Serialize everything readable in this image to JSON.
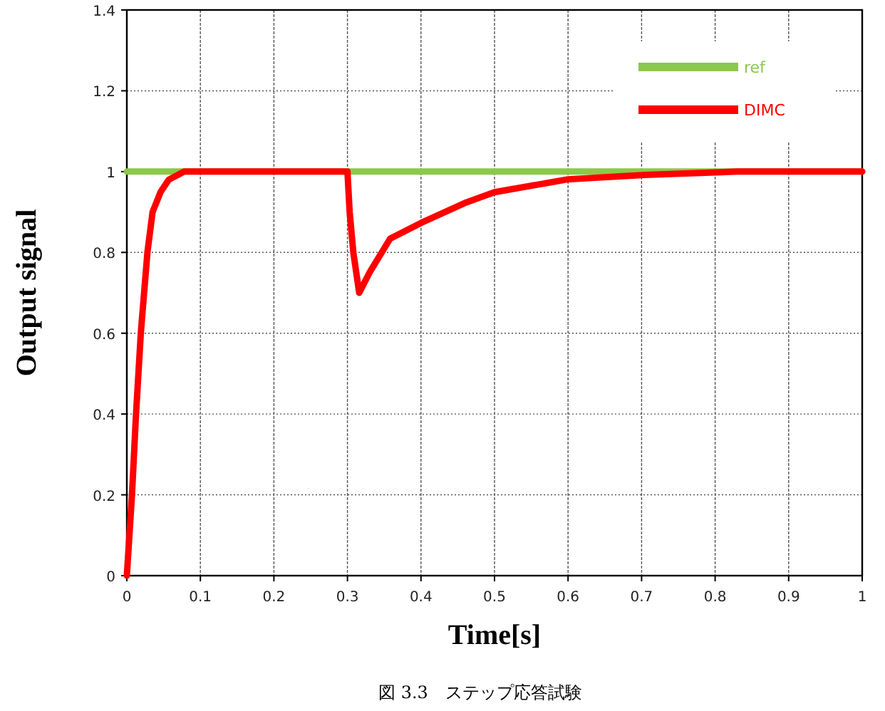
{
  "chart_data": {
    "type": "line",
    "xlabel": "Time[s]",
    "ylabel": "Output signal",
    "annotations": [
      "図 3.3　ステップ応答試験"
    ],
    "xlim": [
      0,
      1
    ],
    "ylim": [
      0,
      1.4
    ],
    "xticks": [
      0,
      0.1,
      0.2,
      0.3,
      0.4,
      0.5,
      0.6,
      0.7,
      0.8,
      0.9,
      1
    ],
    "yticks": [
      0,
      0.2,
      0.4,
      0.6,
      0.8,
      1,
      1.2,
      1.4
    ],
    "grid": true,
    "legend": "top right",
    "line_style": "solid",
    "marker": "none",
    "series": [
      {
        "name": "ref",
        "color": "#8cc84b",
        "x": [
          0,
          1
        ],
        "values": [
          1,
          1
        ]
      },
      {
        "name": "DIMC",
        "color": "#ff0000",
        "x": [
          0,
          0.007,
          0.0125,
          0.019,
          0.028,
          0.035,
          0.046,
          0.057,
          0.078,
          0.3,
          0.303,
          0.308,
          0.316,
          0.33,
          0.358,
          0.4,
          0.462,
          0.5,
          0.6,
          0.705,
          0.83,
          1
        ],
        "values": [
          0,
          0.2,
          0.4,
          0.6,
          0.8,
          0.9,
          0.95,
          0.98,
          1,
          1,
          0.9,
          0.8,
          0.7,
          0.75,
          0.834,
          0.873,
          0.924,
          0.949,
          0.981,
          0.992,
          1,
          1
        ]
      }
    ]
  }
}
